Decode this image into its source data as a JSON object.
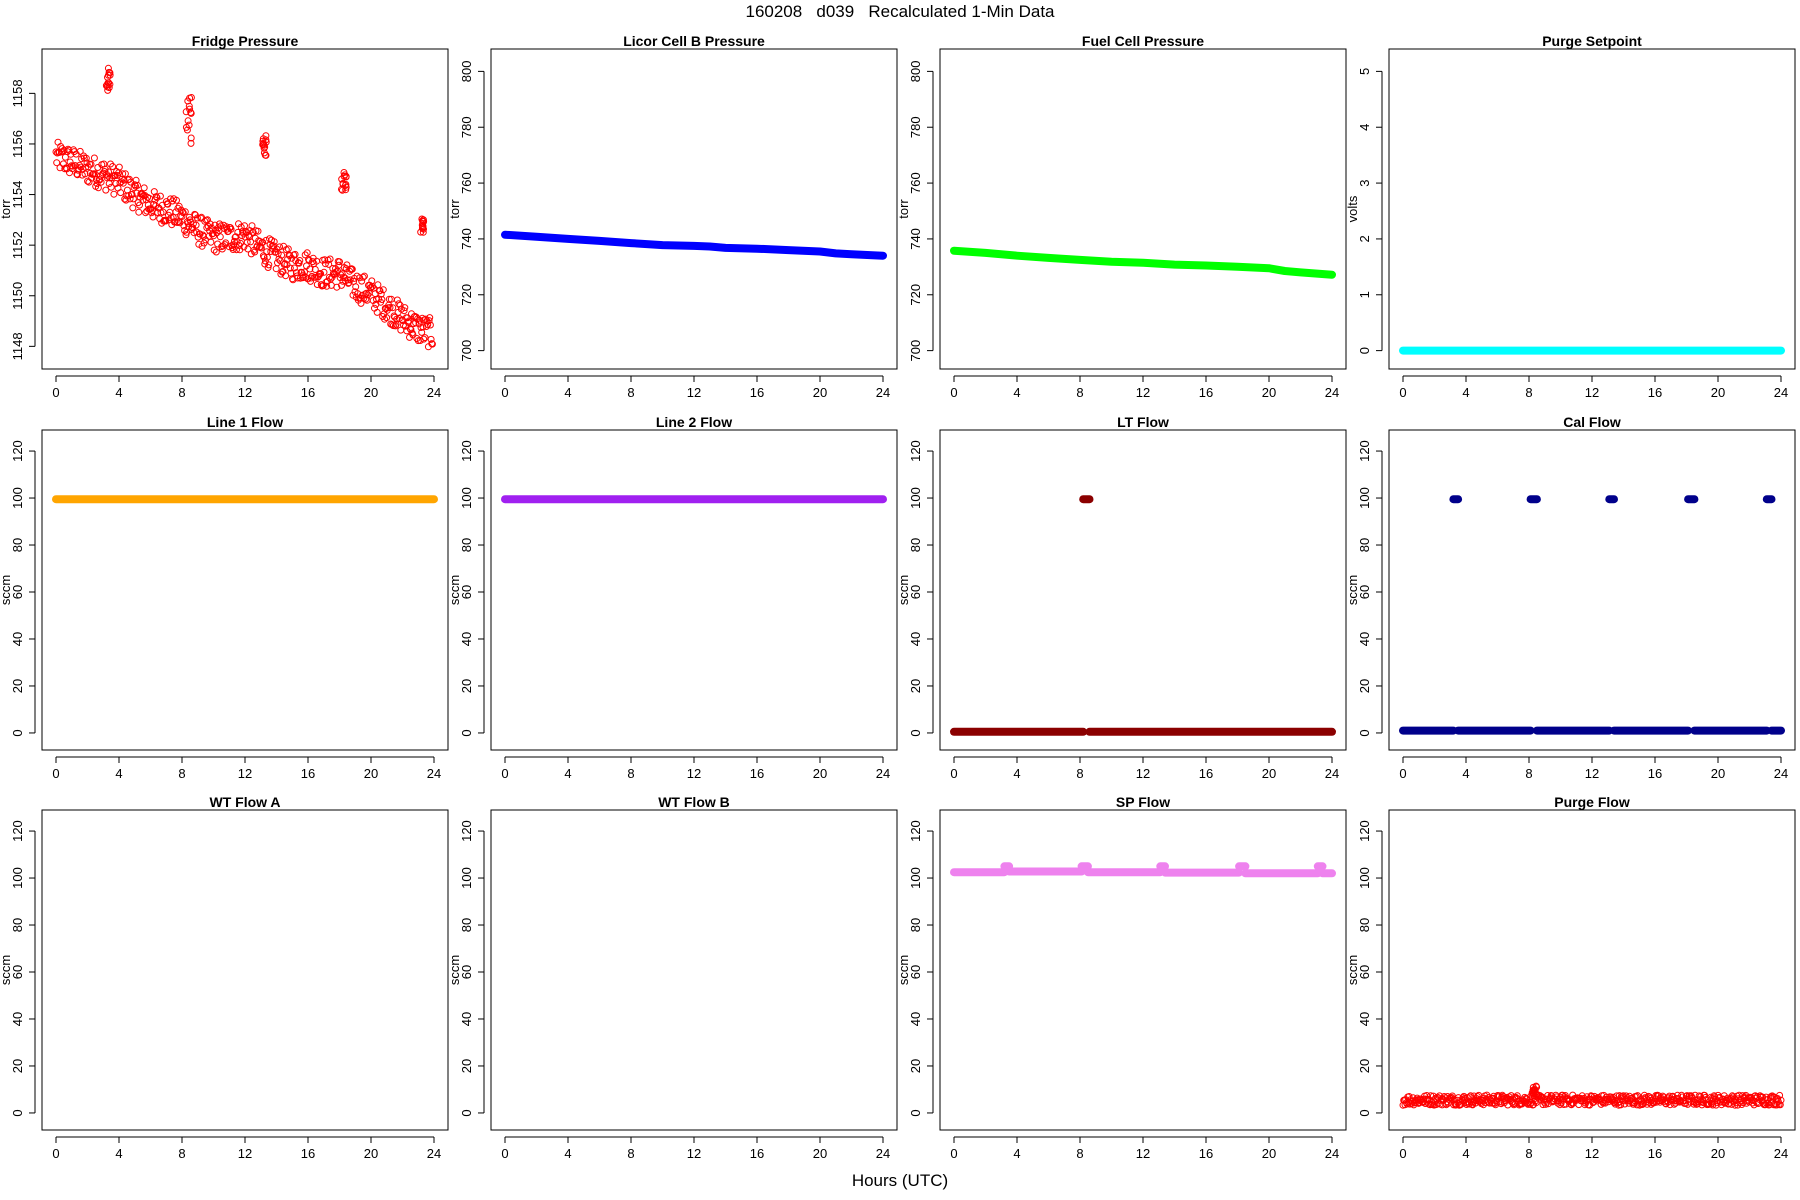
{
  "figure": {
    "title": "160208   d039   Recalculated 1-Min Data",
    "xlabel": "Hours (UTC)"
  },
  "chart_data": [
    {
      "type": "scatter",
      "title": "Fridge Pressure",
      "ylabel": "torr",
      "color": "#ff0000",
      "marker": "open-circle",
      "xlim": [
        0,
        24
      ],
      "ylim": [
        1147.5,
        1159.2
      ],
      "xticks": [
        0,
        4,
        8,
        12,
        16,
        20,
        24
      ],
      "yticks": [
        1148,
        1150,
        1152,
        1154,
        1156,
        1158
      ],
      "series": [
        {
          "kind": "band",
          "x": [
            0,
            1,
            2,
            3,
            4,
            5,
            6,
            7,
            8,
            9,
            10,
            11,
            12,
            13,
            14,
            15,
            16,
            17,
            18,
            19,
            20,
            21,
            22,
            23,
            23.9
          ],
          "y": [
            1155.5,
            1155.3,
            1155.0,
            1154.8,
            1154.5,
            1154.0,
            1153.6,
            1153.4,
            1153.1,
            1152.6,
            1152.3,
            1152.3,
            1152.4,
            1151.9,
            1151.5,
            1151.2,
            1151.2,
            1150.9,
            1150.9,
            1150.4,
            1150.1,
            1149.6,
            1149.1,
            1148.7,
            1148.5
          ],
          "spread": 0.6
        },
        {
          "kind": "cluster",
          "x": [
            3.2,
            3.45
          ],
          "y": [
            1158.0,
            1159.0
          ]
        },
        {
          "kind": "cluster",
          "x": [
            8.2,
            8.6
          ],
          "y": [
            1156.0,
            1157.9
          ]
        },
        {
          "kind": "cluster",
          "x": [
            13.1,
            13.35
          ],
          "y": [
            1155.5,
            1156.4
          ]
        },
        {
          "kind": "cluster",
          "x": [
            18.1,
            18.45
          ],
          "y": [
            1154.1,
            1154.9
          ]
        },
        {
          "kind": "cluster",
          "x": [
            23.1,
            23.35
          ],
          "y": [
            1152.5,
            1153.1
          ]
        }
      ]
    },
    {
      "type": "scatter",
      "title": "Licor Cell B Pressure",
      "ylabel": "torr",
      "color": "#0000ff",
      "marker": "filled-thick",
      "xlim": [
        0,
        24
      ],
      "ylim": [
        697,
        803
      ],
      "xticks": [
        0,
        4,
        8,
        12,
        16,
        20,
        24
      ],
      "yticks": [
        700,
        720,
        740,
        760,
        780,
        800
      ],
      "series": [
        {
          "kind": "line",
          "x": [
            0,
            2,
            4,
            6,
            8,
            10,
            12,
            13,
            14,
            16,
            18,
            20,
            21,
            22,
            24
          ],
          "y": [
            741.5,
            740.8,
            740.0,
            739.3,
            738.5,
            737.8,
            737.5,
            737.3,
            736.8,
            736.5,
            736.0,
            735.5,
            734.8,
            734.5,
            734.0
          ]
        }
      ]
    },
    {
      "type": "scatter",
      "title": "Fuel Cell Pressure",
      "ylabel": "torr",
      "color": "#00ff00",
      "marker": "filled-thick",
      "xlim": [
        0,
        24
      ],
      "ylim": [
        697,
        803
      ],
      "xticks": [
        0,
        4,
        8,
        12,
        16,
        20,
        24
      ],
      "yticks": [
        700,
        720,
        740,
        760,
        780,
        800
      ],
      "series": [
        {
          "kind": "line",
          "x": [
            0,
            2,
            4,
            6,
            8,
            10,
            12,
            14,
            16,
            18,
            20,
            21,
            22,
            24
          ],
          "y": [
            735.8,
            735.0,
            734.0,
            733.2,
            732.5,
            731.8,
            731.5,
            730.8,
            730.5,
            730.0,
            729.5,
            728.5,
            728.0,
            727.2
          ]
        }
      ]
    },
    {
      "type": "scatter",
      "title": "Purge Setpoint",
      "ylabel": "volts",
      "color": "#00ffff",
      "marker": "filled-thick",
      "xlim": [
        0,
        24
      ],
      "ylim": [
        -0.15,
        5.15
      ],
      "xticks": [
        0,
        4,
        8,
        12,
        16,
        20,
        24
      ],
      "yticks": [
        0,
        1,
        2,
        3,
        4,
        5
      ],
      "series": [
        {
          "kind": "line",
          "x": [
            0,
            24
          ],
          "y": [
            0,
            0
          ]
        }
      ]
    },
    {
      "type": "scatter",
      "title": "Line 1 Flow",
      "ylabel": "sccm",
      "color": "#ffa500",
      "marker": "filled-thick",
      "xlim": [
        0,
        24
      ],
      "ylim": [
        -3,
        123
      ],
      "xticks": [
        0,
        4,
        8,
        12,
        16,
        20,
        24
      ],
      "yticks": [
        0,
        20,
        40,
        60,
        80,
        100,
        120
      ],
      "series": [
        {
          "kind": "line",
          "x": [
            0,
            24
          ],
          "y": [
            99.5,
            99.5
          ]
        }
      ]
    },
    {
      "type": "scatter",
      "title": "Line 2 Flow",
      "ylabel": "sccm",
      "color": "#a020f0",
      "marker": "filled-thick",
      "xlim": [
        0,
        24
      ],
      "ylim": [
        -3,
        123
      ],
      "xticks": [
        0,
        4,
        8,
        12,
        16,
        20,
        24
      ],
      "yticks": [
        0,
        20,
        40,
        60,
        80,
        100,
        120
      ],
      "series": [
        {
          "kind": "line",
          "x": [
            0,
            24
          ],
          "y": [
            99.5,
            99.5
          ]
        }
      ]
    },
    {
      "type": "scatter",
      "title": "LT Flow",
      "ylabel": "sccm",
      "color": "#8b0000",
      "marker": "filled-thick",
      "xlim": [
        0,
        24
      ],
      "ylim": [
        -3,
        123
      ],
      "xticks": [
        0,
        4,
        8,
        12,
        16,
        20,
        24
      ],
      "yticks": [
        0,
        20,
        40,
        60,
        80,
        100,
        120
      ],
      "series": [
        {
          "kind": "line",
          "x": [
            0,
            8.2
          ],
          "y": [
            0.5,
            0.5
          ]
        },
        {
          "kind": "line",
          "x": [
            8.6,
            24
          ],
          "y": [
            0.5,
            0.5
          ]
        },
        {
          "kind": "line",
          "x": [
            8.2,
            8.6
          ],
          "y": [
            99.5,
            99.5
          ]
        }
      ]
    },
    {
      "type": "scatter",
      "title": "Cal Flow",
      "ylabel": "sccm",
      "color": "#00008b",
      "marker": "filled-thick",
      "xlim": [
        0,
        24
      ],
      "ylim": [
        -3,
        123
      ],
      "xticks": [
        0,
        4,
        8,
        12,
        16,
        20,
        24
      ],
      "yticks": [
        0,
        20,
        40,
        60,
        80,
        100,
        120
      ],
      "series": [
        {
          "kind": "line",
          "x": [
            0,
            3.2
          ],
          "y": [
            1,
            1
          ]
        },
        {
          "kind": "line",
          "x": [
            3.5,
            8.1
          ],
          "y": [
            1,
            1
          ]
        },
        {
          "kind": "line",
          "x": [
            8.5,
            13.1
          ],
          "y": [
            1,
            1
          ]
        },
        {
          "kind": "line",
          "x": [
            13.4,
            18.1
          ],
          "y": [
            1,
            1
          ]
        },
        {
          "kind": "line",
          "x": [
            18.5,
            23.1
          ],
          "y": [
            1,
            1
          ]
        },
        {
          "kind": "line",
          "x": [
            23.4,
            24
          ],
          "y": [
            1,
            1
          ]
        },
        {
          "kind": "line",
          "x": [
            3.2,
            3.5
          ],
          "y": [
            99.5,
            99.5
          ]
        },
        {
          "kind": "line",
          "x": [
            8.1,
            8.5
          ],
          "y": [
            99.5,
            99.5
          ]
        },
        {
          "kind": "line",
          "x": [
            13.1,
            13.4
          ],
          "y": [
            99.5,
            99.5
          ]
        },
        {
          "kind": "line",
          "x": [
            18.1,
            18.5
          ],
          "y": [
            99.5,
            99.5
          ]
        },
        {
          "kind": "line",
          "x": [
            23.1,
            23.4
          ],
          "y": [
            99.5,
            99.5
          ]
        }
      ]
    },
    {
      "type": "scatter",
      "title": "WT Flow A",
      "ylabel": "sccm",
      "color": "#000000",
      "marker": "none",
      "xlim": [
        0,
        24
      ],
      "ylim": [
        -3,
        123
      ],
      "xticks": [
        0,
        4,
        8,
        12,
        16,
        20,
        24
      ],
      "yticks": [
        0,
        20,
        40,
        60,
        80,
        100,
        120
      ],
      "series": []
    },
    {
      "type": "scatter",
      "title": "WT Flow B",
      "ylabel": "sccm",
      "color": "#000000",
      "marker": "none",
      "xlim": [
        0,
        24
      ],
      "ylim": [
        -3,
        123
      ],
      "xticks": [
        0,
        4,
        8,
        12,
        16,
        20,
        24
      ],
      "yticks": [
        0,
        20,
        40,
        60,
        80,
        100,
        120
      ],
      "series": []
    },
    {
      "type": "scatter",
      "title": "SP Flow",
      "ylabel": "sccm",
      "color": "#ee82ee",
      "marker": "filled-thick",
      "xlim": [
        0,
        24
      ],
      "ylim": [
        -3,
        123
      ],
      "xticks": [
        0,
        4,
        8,
        12,
        16,
        20,
        24
      ],
      "yticks": [
        0,
        20,
        40,
        60,
        80,
        100,
        120
      ],
      "series": [
        {
          "kind": "line",
          "x": [
            0,
            3.2
          ],
          "y": [
            102.5,
            102.5
          ]
        },
        {
          "kind": "line",
          "x": [
            3.5,
            8.1
          ],
          "y": [
            102.8,
            102.8
          ]
        },
        {
          "kind": "line",
          "x": [
            8.5,
            13.1
          ],
          "y": [
            102.5,
            102.5
          ]
        },
        {
          "kind": "line",
          "x": [
            13.4,
            18.1
          ],
          "y": [
            102.3,
            102.3
          ]
        },
        {
          "kind": "line",
          "x": [
            18.5,
            23.1
          ],
          "y": [
            102.0,
            102.0
          ]
        },
        {
          "kind": "line",
          "x": [
            23.4,
            24
          ],
          "y": [
            102.0,
            102.0
          ]
        },
        {
          "kind": "line",
          "x": [
            3.2,
            3.5
          ],
          "y": [
            105.0,
            105.0
          ]
        },
        {
          "kind": "line",
          "x": [
            8.1,
            8.5
          ],
          "y": [
            105.0,
            105.0
          ]
        },
        {
          "kind": "line",
          "x": [
            13.1,
            13.4
          ],
          "y": [
            105.0,
            105.0
          ]
        },
        {
          "kind": "line",
          "x": [
            18.1,
            18.5
          ],
          "y": [
            105.0,
            105.0
          ]
        },
        {
          "kind": "line",
          "x": [
            23.1,
            23.4
          ],
          "y": [
            105.0,
            105.0
          ]
        }
      ]
    },
    {
      "type": "scatter",
      "title": "Purge Flow",
      "ylabel": "sccm",
      "color": "#ff0000",
      "marker": "open-circle",
      "xlim": [
        0,
        24
      ],
      "ylim": [
        -3,
        123
      ],
      "xticks": [
        0,
        4,
        8,
        12,
        16,
        20,
        24
      ],
      "yticks": [
        0,
        20,
        40,
        60,
        80,
        100,
        120
      ],
      "series": [
        {
          "kind": "band",
          "x": [
            0,
            24
          ],
          "y": [
            5.5,
            5.5
          ],
          "spread": 2.2
        },
        {
          "kind": "cluster",
          "x": [
            8.2,
            8.5
          ],
          "y": [
            8.0,
            11.5
          ]
        }
      ]
    }
  ]
}
